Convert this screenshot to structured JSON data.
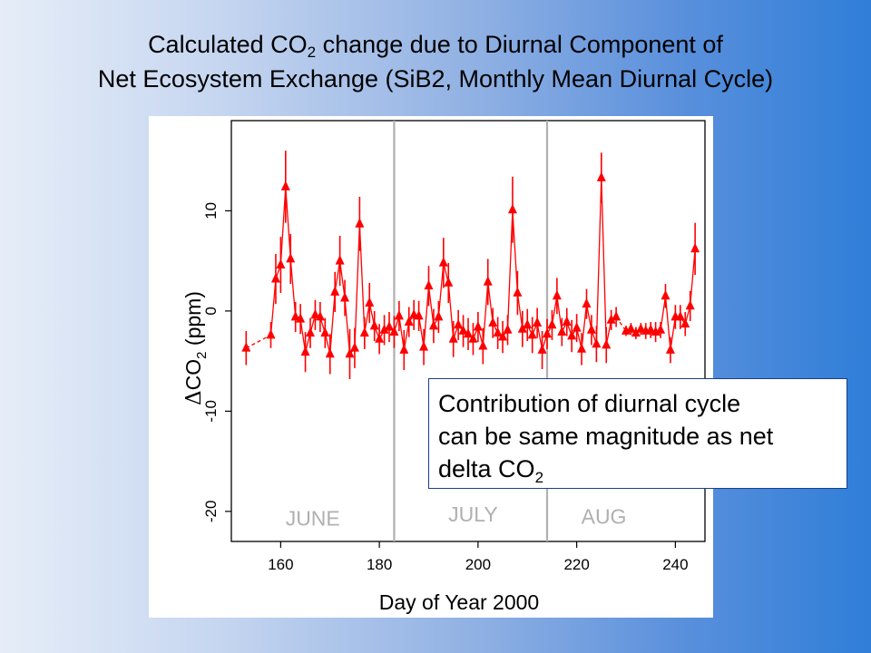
{
  "slide": {
    "title_line1_a": "Calculated CO",
    "title_line1_sub": "2",
    "title_line1_b": " change due to Diurnal Component of",
    "title_line2": "Net Ecosystem Exchange (SiB2, Monthly Mean Diurnal Cycle)"
  },
  "callout": {
    "line1": "Contribution of diurnal cycle",
    "line2": "can be same magnitude as net",
    "line3_a": "delta CO",
    "line3_sub": "2"
  },
  "colors": {
    "series": "#ff0000",
    "month_divider": "#b0b0b0",
    "month_label": "#b0b0b0",
    "axis": "#000000"
  },
  "chart_data": {
    "type": "line",
    "xlabel": "Day of Year 2000",
    "ylabel_prefix": "Δ",
    "ylabel_main": "CO",
    "ylabel_sub": "2",
    "ylabel_suffix": " (ppm)",
    "xlim": [
      150,
      246
    ],
    "ylim": [
      -23,
      19
    ],
    "xticks": [
      160,
      180,
      200,
      220,
      240
    ],
    "yticks": [
      -20,
      -10,
      0,
      10
    ],
    "grid": false,
    "month_dividers": [
      183,
      214
    ],
    "month_labels": [
      {
        "text": "JUNE",
        "x": 166.5,
        "y": -20.7
      },
      {
        "text": "JULY",
        "x": 199,
        "y": -20.3
      },
      {
        "text": "AUG",
        "x": 225.5,
        "y": -20.5
      }
    ],
    "series": [
      {
        "x": [
          153,
          158,
          159,
          160,
          161,
          162,
          163,
          164,
          165,
          166,
          167,
          168,
          169,
          170,
          171,
          172,
          173,
          174,
          175,
          176,
          177,
          178,
          179,
          180,
          181,
          182,
          183,
          184,
          185,
          186,
          187,
          188,
          189,
          190,
          191,
          192,
          193,
          194,
          195,
          196,
          197,
          198,
          199,
          200,
          201,
          202,
          203,
          204,
          205,
          206,
          207,
          208,
          209,
          210,
          211,
          212,
          213,
          214,
          215,
          216,
          217,
          218,
          219,
          220,
          221,
          222,
          223,
          224,
          225,
          226,
          227,
          228,
          230,
          231,
          232,
          233,
          234,
          235,
          236,
          237,
          238,
          239,
          240,
          241,
          242,
          243,
          244
        ],
        "y": [
          -3.7,
          -2.4,
          3.2,
          4.6,
          12.4,
          5.2,
          -0.6,
          -0.8,
          -4.1,
          -2.2,
          -0.4,
          -0.6,
          -2.2,
          -4.3,
          1.9,
          5.0,
          1.3,
          -4.3,
          -3.7,
          8.7,
          -2.2,
          0.8,
          -1.5,
          -2.8,
          -1.9,
          -1.6,
          -2.1,
          -0.5,
          -3.9,
          -1.1,
          -0.4,
          -0.5,
          -3.6,
          2.5,
          -1.5,
          -0.6,
          4.8,
          2.8,
          -2.8,
          -1.4,
          -2.0,
          -2.3,
          -2.8,
          -1.6,
          -3.5,
          2.9,
          -1.2,
          -2.2,
          -2.6,
          -1.9,
          10.1,
          1.8,
          -1.8,
          -1.4,
          -2.4,
          -1.2,
          -3.9,
          -2.3,
          -1.4,
          1.5,
          -2.1,
          -1.1,
          -2.5,
          -1.7,
          -3.8,
          0.7,
          -1.9,
          -3.3,
          13.3,
          -3.4,
          -0.9,
          -0.6,
          -2.0,
          -1.8,
          -2.2,
          -1.8,
          -2.0,
          -1.9,
          -2.1,
          -1.9,
          1.5,
          -3.9,
          -0.6,
          -0.6,
          -1.3,
          0.5,
          6.2
        ],
        "err": [
          1.7,
          1.3,
          2.5,
          2.8,
          3.6,
          2.5,
          1.5,
          1.5,
          2.0,
          1.5,
          1.5,
          1.5,
          1.5,
          2.0,
          2.0,
          2.5,
          1.8,
          2.5,
          2.0,
          2.7,
          1.6,
          2.0,
          1.5,
          1.5,
          1.5,
          1.5,
          1.6,
          1.5,
          2.0,
          1.5,
          1.5,
          1.5,
          1.8,
          2.0,
          1.7,
          1.6,
          2.5,
          2.0,
          1.8,
          1.5,
          1.6,
          1.6,
          1.6,
          1.5,
          1.8,
          2.3,
          1.5,
          1.6,
          1.6,
          1.5,
          3.3,
          2.2,
          1.8,
          1.6,
          1.8,
          1.5,
          1.9,
          1.5,
          1.5,
          1.8,
          1.4,
          1.4,
          1.6,
          1.4,
          1.6,
          1.5,
          1.5,
          1.8,
          2.5,
          1.8,
          1.0,
          1.0,
          0.5,
          0.6,
          0.6,
          0.6,
          0.8,
          0.8,
          1.0,
          0.8,
          1.2,
          1.3,
          1.2,
          1.2,
          1.2,
          1.5,
          2.6
        ]
      }
    ]
  }
}
